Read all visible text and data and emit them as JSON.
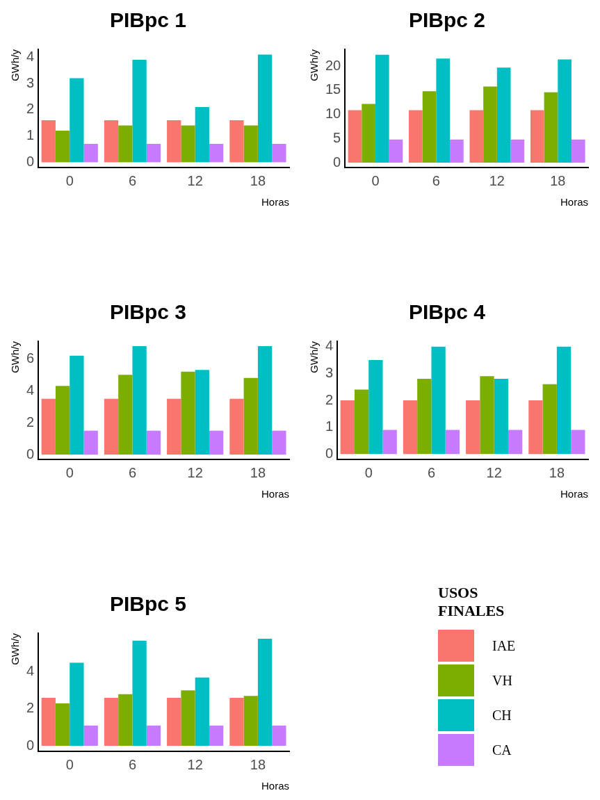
{
  "chart_data": [
    {
      "type": "bar",
      "title": "PIBpc 1",
      "xlabel": "Horas",
      "ylabel": "GWh/y",
      "categories": [
        "0",
        "6",
        "12",
        "18"
      ],
      "series": [
        {
          "color": "#f8766d",
          "values": [
            1.6,
            1.6,
            1.6,
            1.6
          ]
        },
        {
          "color": "#7cae00",
          "values": [
            1.2,
            1.4,
            1.4,
            1.4
          ]
        },
        {
          "color": "#00bfc4",
          "values": [
            3.2,
            3.9,
            2.1,
            4.1
          ]
        },
        {
          "color": "#c77cff",
          "values": [
            0.7,
            0.7,
            0.7,
            0.7
          ]
        }
      ],
      "ylim": [
        -0.2,
        4.3
      ],
      "yticks": [
        0,
        1,
        2,
        3,
        4
      ],
      "grid": false
    },
    {
      "type": "bar",
      "title": "PIBpc 2",
      "xlabel": "Horas",
      "ylabel": "GWh/y",
      "categories": [
        "0",
        "6",
        "12",
        "18"
      ],
      "series": [
        {
          "color": "#f8766d",
          "values": [
            10.9,
            10.9,
            10.9,
            10.9
          ]
        },
        {
          "color": "#7cae00",
          "values": [
            12.2,
            14.8,
            15.8,
            14.6
          ]
        },
        {
          "color": "#00bfc4",
          "values": [
            22.4,
            21.6,
            19.7,
            21.4
          ]
        },
        {
          "color": "#c77cff",
          "values": [
            4.8,
            4.8,
            4.8,
            4.8
          ]
        }
      ],
      "ylim": [
        -1,
        23.5
      ],
      "yticks": [
        0,
        5,
        10,
        15,
        20
      ],
      "grid": false
    },
    {
      "type": "bar",
      "title": "PIBpc 3",
      "xlabel": "Horas",
      "ylabel": "GWh/y",
      "categories": [
        "0",
        "6",
        "12",
        "18"
      ],
      "series": [
        {
          "color": "#f8766d",
          "values": [
            3.5,
            3.5,
            3.5,
            3.5
          ]
        },
        {
          "color": "#7cae00",
          "values": [
            4.3,
            5.0,
            5.2,
            4.8
          ]
        },
        {
          "color": "#00bfc4",
          "values": [
            6.2,
            6.8,
            5.3,
            6.8
          ]
        },
        {
          "color": "#c77cff",
          "values": [
            1.5,
            1.5,
            1.5,
            1.5
          ]
        }
      ],
      "ylim": [
        -0.3,
        7.1
      ],
      "yticks": [
        0,
        2,
        4,
        6
      ],
      "grid": false
    },
    {
      "type": "bar",
      "title": "PIBpc 4",
      "xlabel": "Horas",
      "ylabel": "GWh/y",
      "categories": [
        "0",
        "6",
        "12",
        "18"
      ],
      "series": [
        {
          "color": "#f8766d",
          "values": [
            2.0,
            2.0,
            2.0,
            2.0
          ]
        },
        {
          "color": "#7cae00",
          "values": [
            2.4,
            2.8,
            2.9,
            2.6
          ]
        },
        {
          "color": "#00bfc4",
          "values": [
            3.5,
            4.0,
            2.8,
            4.0
          ]
        },
        {
          "color": "#c77cff",
          "values": [
            0.9,
            0.9,
            0.9,
            0.9
          ]
        }
      ],
      "ylim": [
        -0.2,
        4.2
      ],
      "yticks": [
        0,
        1,
        2,
        3,
        4
      ],
      "grid": false
    },
    {
      "type": "bar",
      "title": "PIBpc 5",
      "xlabel": "Horas",
      "ylabel": "GWh/y",
      "categories": [
        "0",
        "6",
        "12",
        "18"
      ],
      "series": [
        {
          "name": "IAE",
          "color": "#f8766d",
          "values": [
            2.6,
            2.6,
            2.6,
            2.6
          ]
        },
        {
          "name": "VH",
          "color": "#7cae00",
          "values": [
            2.3,
            2.8,
            3.0,
            2.7
          ]
        },
        {
          "name": "CH",
          "color": "#00bfc4",
          "values": [
            4.5,
            5.7,
            3.7,
            5.8
          ]
        },
        {
          "name": "CA",
          "color": "#c77cff",
          "values": [
            1.1,
            1.1,
            1.1,
            1.1
          ]
        }
      ],
      "ylim": [
        -0.3,
        6.1
      ],
      "yticks": [
        0,
        2,
        4
      ],
      "grid": false,
      "legend": "right",
      "legend_title": "USOS FINALES"
    }
  ]
}
